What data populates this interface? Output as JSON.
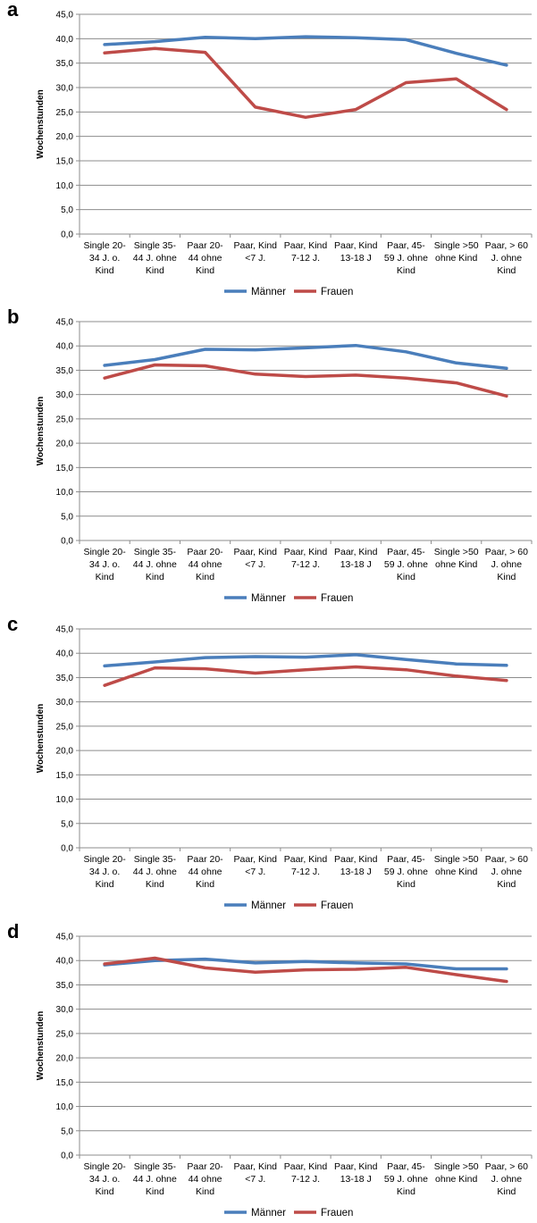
{
  "chart_data": [
    {
      "type": "line",
      "panel_label": "a",
      "ylabel": "Wochenstunden",
      "ylim": [
        0,
        45
      ],
      "yticks": [
        "0,0",
        "5,0",
        "10,0",
        "15,0",
        "20,0",
        "25,0",
        "30,0",
        "35,0",
        "40,0",
        "45,0"
      ],
      "categories": [
        [
          "Single 20-",
          "34 J. o.",
          "Kind"
        ],
        [
          "Single 35-",
          "44 J. ohne",
          "Kind"
        ],
        [
          "Paar 20-",
          "44 ohne",
          "Kind"
        ],
        [
          "Paar, Kind",
          "<7 J."
        ],
        [
          "Paar, Kind",
          "7-12 J."
        ],
        [
          "Paar, Kind",
          "13-18 J"
        ],
        [
          "Paar, 45-",
          "59 J. ohne",
          "Kind"
        ],
        [
          "Single >50",
          "ohne Kind"
        ],
        [
          "Paar, > 60",
          "J. ohne",
          "Kind"
        ]
      ],
      "legend_position": "bottom",
      "grid": true,
      "series": [
        {
          "name": "Männer",
          "color": "#4a7ebb",
          "values": [
            38.8,
            39.4,
            40.3,
            40.0,
            40.4,
            40.2,
            39.8,
            37.0,
            34.6
          ]
        },
        {
          "name": "Frauen",
          "color": "#be4b48",
          "values": [
            37.1,
            38.0,
            37.2,
            26.0,
            23.9,
            25.5,
            31.0,
            31.8,
            25.5
          ]
        }
      ]
    },
    {
      "type": "line",
      "panel_label": "b",
      "ylabel": "Wochenstunden",
      "ylim": [
        0,
        45
      ],
      "yticks": [
        "0,0",
        "5,0",
        "10,0",
        "15,0",
        "20,0",
        "25,0",
        "30,0",
        "35,0",
        "40,0",
        "45,0"
      ],
      "categories": [
        [
          "Single 20-",
          "34 J. o.",
          "Kind"
        ],
        [
          "Single 35-",
          "44 J. ohne",
          "Kind"
        ],
        [
          "Paar 20-",
          "44 ohne",
          "Kind"
        ],
        [
          "Paar, Kind",
          "<7 J."
        ],
        [
          "Paar, Kind",
          "7-12 J."
        ],
        [
          "Paar, Kind",
          "13-18 J"
        ],
        [
          "Paar, 45-",
          "59 J. ohne",
          "Kind"
        ],
        [
          "Single >50",
          "ohne Kind"
        ],
        [
          "Paar, > 60",
          "J. ohne",
          "Kind"
        ]
      ],
      "legend_position": "bottom",
      "grid": true,
      "series": [
        {
          "name": "Männer",
          "color": "#4a7ebb",
          "values": [
            36.0,
            37.2,
            39.3,
            39.2,
            39.6,
            40.1,
            38.8,
            36.5,
            35.4
          ]
        },
        {
          "name": "Frauen",
          "color": "#be4b48",
          "values": [
            33.4,
            36.1,
            35.9,
            34.2,
            33.7,
            34.0,
            33.4,
            32.4,
            29.7
          ]
        }
      ]
    },
    {
      "type": "line",
      "panel_label": "c",
      "ylabel": "Wochenstunden",
      "ylim": [
        0,
        45
      ],
      "yticks": [
        "0,0",
        "5,0",
        "10,0",
        "15,0",
        "20,0",
        "25,0",
        "30,0",
        "35,0",
        "40,0",
        "45,0"
      ],
      "categories": [
        [
          "Single 20-",
          "34 J. o.",
          "Kind"
        ],
        [
          "Single 35-",
          "44 J. ohne",
          "Kind"
        ],
        [
          "Paar 20-",
          "44 ohne",
          "Kind"
        ],
        [
          "Paar, Kind",
          "<7 J."
        ],
        [
          "Paar, Kind",
          "7-12 J."
        ],
        [
          "Paar, Kind",
          "13-18 J"
        ],
        [
          "Paar, 45-",
          "59 J. ohne",
          "Kind"
        ],
        [
          "Single >50",
          "ohne Kind"
        ],
        [
          "Paar, > 60",
          "J. ohne",
          "Kind"
        ]
      ],
      "legend_position": "bottom",
      "grid": true,
      "series": [
        {
          "name": "Männer",
          "color": "#4a7ebb",
          "values": [
            37.4,
            38.2,
            39.1,
            39.3,
            39.2,
            39.7,
            38.7,
            37.8,
            37.5
          ]
        },
        {
          "name": "Frauen",
          "color": "#be4b48",
          "values": [
            33.4,
            37.0,
            36.8,
            35.9,
            36.6,
            37.2,
            36.6,
            35.3,
            34.4
          ]
        }
      ]
    },
    {
      "type": "line",
      "panel_label": "d",
      "ylabel": "Wochenstunden",
      "ylim": [
        0,
        45
      ],
      "yticks": [
        "0,0",
        "5,0",
        "10,0",
        "15,0",
        "20,0",
        "25,0",
        "30,0",
        "35,0",
        "40,0",
        "45,0"
      ],
      "categories": [
        [
          "Single 20-",
          "34 J. o.",
          "Kind"
        ],
        [
          "Single 35-",
          "44 J. ohne",
          "Kind"
        ],
        [
          "Paar 20-",
          "44 ohne",
          "Kind"
        ],
        [
          "Paar, Kind",
          "<7 J."
        ],
        [
          "Paar, Kind",
          "7-12 J."
        ],
        [
          "Paar, Kind",
          "13-18 J"
        ],
        [
          "Paar, 45-",
          "59 J. ohne",
          "Kind"
        ],
        [
          "Single >50",
          "ohne Kind"
        ],
        [
          "Paar, > 60",
          "J. ohne",
          "Kind"
        ]
      ],
      "legend_position": "bottom",
      "grid": true,
      "series": [
        {
          "name": "Männer",
          "color": "#4a7ebb",
          "values": [
            39.1,
            40.0,
            40.3,
            39.5,
            39.8,
            39.5,
            39.3,
            38.3,
            38.3
          ]
        },
        {
          "name": "Frauen",
          "color": "#be4b48",
          "values": [
            39.3,
            40.5,
            38.5,
            37.6,
            38.1,
            38.2,
            38.6,
            37.1,
            35.7
          ]
        }
      ]
    }
  ]
}
